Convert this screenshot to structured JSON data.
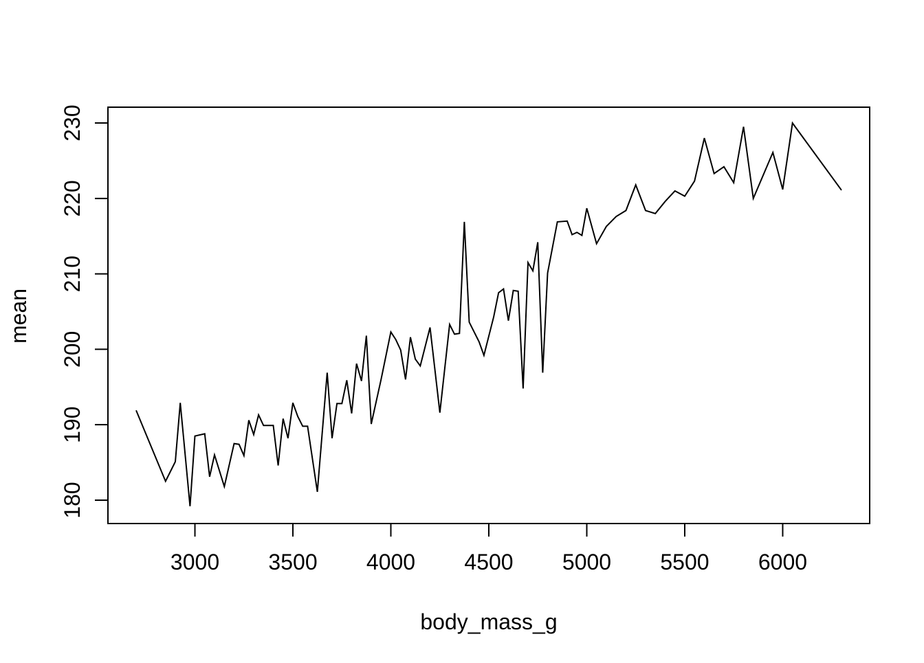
{
  "figure": {
    "background": "#ffffff",
    "line_color": "#000000",
    "axis_color": "#000000"
  },
  "chart_data": {
    "type": "line",
    "title": "",
    "xlabel": "body_mass_g",
    "ylabel": "mean",
    "legend": null,
    "grid": false,
    "xlim": [
      2556,
      6444
    ],
    "ylim": [
      176.9,
      232.1
    ],
    "xticks": [
      3000,
      3500,
      4000,
      4500,
      5000,
      5500,
      6000
    ],
    "yticks": [
      180,
      190,
      200,
      210,
      220,
      230
    ],
    "x": [
      2700,
      2850,
      2900,
      2925,
      2975,
      3000,
      3050,
      3075,
      3100,
      3150,
      3200,
      3225,
      3250,
      3275,
      3300,
      3325,
      3350,
      3400,
      3425,
      3450,
      3475,
      3500,
      3525,
      3550,
      3575,
      3625,
      3675,
      3700,
      3725,
      3750,
      3775,
      3800,
      3825,
      3850,
      3875,
      3900,
      3950,
      4000,
      4025,
      4050,
      4075,
      4100,
      4125,
      4150,
      4200,
      4250,
      4300,
      4325,
      4350,
      4375,
      4400,
      4450,
      4475,
      4525,
      4550,
      4575,
      4600,
      4625,
      4650,
      4675,
      4700,
      4725,
      4750,
      4775,
      4800,
      4850,
      4900,
      4925,
      4950,
      4975,
      5000,
      5050,
      5100,
      5150,
      5200,
      5250,
      5300,
      5350,
      5400,
      5450,
      5500,
      5550,
      5600,
      5650,
      5700,
      5750,
      5800,
      5850,
      5950,
      6000,
      6050,
      6300
    ],
    "y": [
      191.9,
      182.5,
      185.1,
      192.9,
      179.2,
      188.5,
      188.8,
      183.1,
      186.0,
      181.8,
      187.5,
      187.4,
      185.9,
      190.6,
      188.7,
      191.3,
      189.9,
      189.9,
      184.6,
      190.8,
      188.2,
      192.9,
      191.1,
      189.8,
      189.8,
      181.1,
      196.9,
      188.2,
      192.8,
      192.8,
      195.9,
      191.5,
      198.1,
      195.8,
      201.8,
      190.1,
      196.0,
      202.3,
      201.3,
      199.9,
      196.0,
      201.6,
      198.7,
      197.8,
      202.9,
      191.6,
      203.3,
      202.0,
      202.1,
      216.9,
      203.6,
      201.0,
      199.2,
      204.3,
      207.5,
      208.0,
      203.8,
      207.8,
      207.7,
      194.8,
      211.5,
      210.4,
      214.2,
      196.9,
      210.1,
      216.9,
      217.0,
      215.2,
      215.5,
      215.1,
      218.7,
      214.0,
      216.3,
      217.6,
      218.4,
      221.8,
      218.4,
      218.0,
      219.6,
      221.0,
      220.3,
      222.3,
      228.0,
      223.3,
      224.2,
      222.1,
      229.5,
      220.0,
      226.1,
      221.2,
      230.0,
      221.1
    ]
  }
}
